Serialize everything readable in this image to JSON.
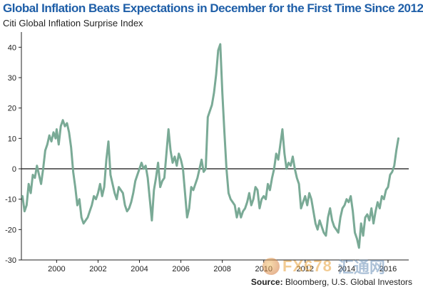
{
  "header": {
    "title": "Global Inflation Beats Expectations in December for the First Time Since 2012",
    "subtitle": "Citi Global Inflation Surprise Index"
  },
  "footer": {
    "source_label": "Source:",
    "source_text": "Bloomberg, U.S. Global Investors"
  },
  "watermark": {
    "brand": "FX678",
    "brand_cn": "汇通网"
  },
  "colors": {
    "title": "#1f5fa8",
    "line": "#7aaa96",
    "axis": "#222222",
    "zero_line": "#111111"
  },
  "chart_data": {
    "type": "line",
    "title": "Global Inflation Beats Expectations in December for the First Time Since 2012",
    "subtitle": "Citi Global Inflation Surprise Index",
    "xlabel": "",
    "ylabel": "",
    "xlim": [
      1998.3,
      2017.0
    ],
    "ylim": [
      -30,
      45
    ],
    "yticks": [
      -30,
      -20,
      -10,
      0,
      10,
      20,
      30,
      40
    ],
    "xticks": [
      2000,
      2002,
      2004,
      2006,
      2008,
      2010,
      2012,
      2014,
      2016
    ],
    "grid": false,
    "series": [
      {
        "x": [
          1998.35,
          1998.45,
          1998.55,
          1998.65,
          1998.75,
          1998.85,
          1998.95,
          1999.05,
          1999.15,
          1999.25,
          1999.35,
          1999.45,
          1999.55,
          1999.65,
          1999.75,
          1999.85,
          1999.95,
          2000.0,
          2000.1,
          2000.2,
          2000.3,
          2000.4,
          2000.5,
          2000.6,
          2000.7,
          2000.8,
          2000.9,
          2001.0,
          2001.1,
          2001.2,
          2001.3,
          2001.4,
          2001.5,
          2001.6,
          2001.7,
          2001.8,
          2001.9,
          2002.0,
          2002.1,
          2002.2,
          2002.3,
          2002.4,
          2002.5,
          2002.6,
          2002.7,
          2002.8,
          2002.9,
          2003.0,
          2003.1,
          2003.2,
          2003.3,
          2003.4,
          2003.5,
          2003.6,
          2003.7,
          2003.8,
          2003.9,
          2004.0,
          2004.1,
          2004.2,
          2004.3,
          2004.4,
          2004.5,
          2004.6,
          2004.7,
          2004.8,
          2004.9,
          2005.0,
          2005.1,
          2005.2,
          2005.3,
          2005.4,
          2005.5,
          2005.6,
          2005.7,
          2005.8,
          2005.9,
          2006.0,
          2006.1,
          2006.2,
          2006.3,
          2006.4,
          2006.5,
          2006.6,
          2006.7,
          2006.8,
          2006.9,
          2007.0,
          2007.1,
          2007.2,
          2007.3,
          2007.4,
          2007.5,
          2007.6,
          2007.7,
          2007.8,
          2007.9,
          2008.0,
          2008.1,
          2008.2,
          2008.3,
          2008.4,
          2008.5,
          2008.6,
          2008.7,
          2008.8,
          2008.9,
          2009.0,
          2009.1,
          2009.2,
          2009.3,
          2009.4,
          2009.5,
          2009.6,
          2009.7,
          2009.8,
          2009.9,
          2010.0,
          2010.1,
          2010.2,
          2010.3,
          2010.4,
          2010.5,
          2010.6,
          2010.7,
          2010.8,
          2010.9,
          2011.0,
          2011.1,
          2011.2,
          2011.3,
          2011.4,
          2011.5,
          2011.6,
          2011.7,
          2011.8,
          2011.9,
          2012.0,
          2012.1,
          2012.2,
          2012.3,
          2012.4,
          2012.5,
          2012.6,
          2012.7,
          2012.8,
          2012.9,
          2013.0,
          2013.1,
          2013.2,
          2013.3,
          2013.4,
          2013.5,
          2013.6,
          2013.7,
          2013.8,
          2013.9,
          2014.0,
          2014.1,
          2014.2,
          2014.3,
          2014.4,
          2014.5,
          2014.6,
          2014.7,
          2014.8,
          2014.9,
          2015.0,
          2015.1,
          2015.2,
          2015.3,
          2015.4,
          2015.5,
          2015.6,
          2015.7,
          2015.8,
          2015.9,
          2016.0,
          2016.1,
          2016.2,
          2016.3,
          2016.4,
          2016.5
        ],
        "values": [
          -9,
          -14,
          -12,
          -5,
          -8,
          -2,
          -3,
          1,
          -2,
          -5,
          0,
          6,
          8,
          11,
          9,
          12,
          10,
          13,
          8,
          14,
          16,
          14,
          15,
          12,
          7,
          -1,
          -6,
          -12,
          -10,
          -16,
          -18,
          -17,
          -16,
          -14,
          -12,
          -9,
          -10,
          -8,
          -5,
          -9,
          -6,
          3,
          9,
          -2,
          -5,
          -8,
          -10,
          -6,
          -7,
          -8,
          -12,
          -14,
          -13,
          -11,
          -8,
          -4,
          -2,
          0,
          2,
          0,
          1,
          -3,
          -10,
          -17,
          -7,
          -3,
          2,
          -6,
          -4,
          -3,
          5,
          13,
          6,
          2,
          4,
          1,
          5,
          3,
          0,
          -8,
          -16,
          -13,
          -6,
          -7,
          -5,
          -3,
          0,
          3,
          -1,
          0,
          17,
          19,
          21,
          25,
          31,
          39,
          41,
          25,
          12,
          0,
          -8,
          -10,
          -11,
          -12,
          -16,
          -13,
          -16,
          -14,
          -13,
          -11,
          -8,
          -12,
          -10,
          -6,
          -7,
          -13,
          -10,
          -9,
          -10,
          -5,
          -7,
          -3,
          0,
          5,
          3,
          8,
          13,
          5,
          0,
          2,
          1,
          4,
          0,
          -3,
          -5,
          -13,
          -11,
          -9,
          -12,
          -8,
          -10,
          -14,
          -18,
          -20,
          -17,
          -19,
          -21,
          -22,
          -16,
          -13,
          -17,
          -19,
          -20,
          -21,
          -16,
          -13,
          -12,
          -10,
          -11,
          -9,
          -14,
          -21,
          -23,
          -26,
          -18,
          -22,
          -16,
          -15,
          -17,
          -13,
          -18,
          -14,
          -11,
          -13,
          -9,
          -10,
          -7,
          -6,
          -2,
          -1,
          1,
          6,
          10
        ]
      }
    ]
  }
}
